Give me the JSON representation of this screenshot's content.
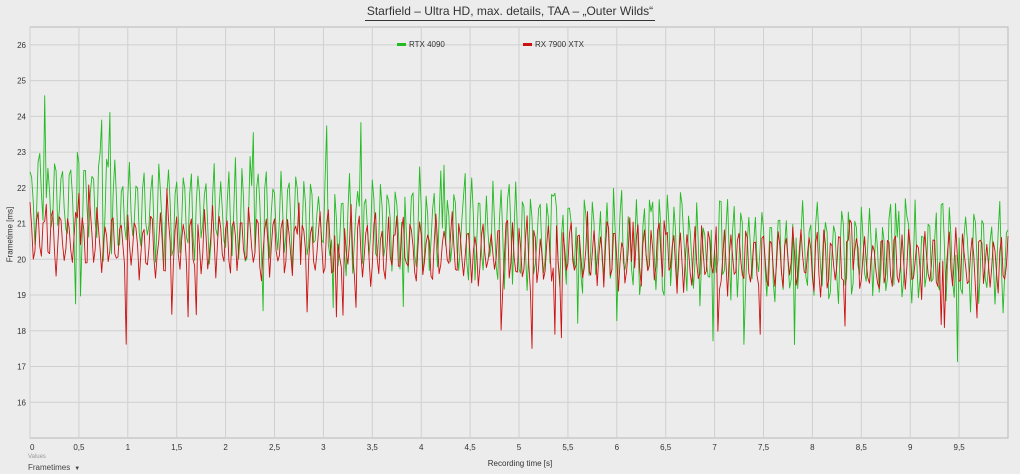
{
  "chart_data": {
    "type": "line",
    "title": "Starfield – Ultra HD, max. details, TAA – „Outer Wilds“",
    "xlabel": "Recording time [s]",
    "ylabel": "Frametime [ms]",
    "xlim": [
      0,
      10
    ],
    "ylim": [
      15,
      26.5
    ],
    "x_ticks": [
      "0",
      "0,5",
      "1",
      "1,5",
      "2",
      "2,5",
      "3",
      "3,5",
      "4",
      "4,5",
      "5",
      "5,5",
      "6",
      "6,5",
      "7",
      "7,5",
      "8",
      "8,5",
      "9",
      "9,5"
    ],
    "y_ticks": [
      "16",
      "17",
      "18",
      "19",
      "20",
      "21",
      "22",
      "23",
      "24",
      "25",
      "26"
    ],
    "grid": true,
    "legend_position": "top-center",
    "series": [
      {
        "name": "RTX 4090",
        "color": "#22bb22",
        "x": [
          0,
          0.25,
          0.5,
          0.75,
          1,
          1.25,
          1.5,
          1.75,
          2,
          2.25,
          2.5,
          2.75,
          3,
          3.25,
          3.5,
          3.75,
          4,
          4.25,
          4.5,
          4.75,
          5,
          5.25,
          5.5,
          5.75,
          6,
          6.25,
          6.5,
          6.75,
          7,
          7.25,
          7.5,
          7.75,
          8,
          8.25,
          8.5,
          8.75,
          9,
          9.25,
          9.5,
          9.75,
          10
        ],
        "mean": [
          21.8,
          21.8,
          21.6,
          21.5,
          21.4,
          21.3,
          21.3,
          21.3,
          21.3,
          21.2,
          21.2,
          21.1,
          21.1,
          21.0,
          21.0,
          21.0,
          20.9,
          20.8,
          20.7,
          20.7,
          20.6,
          20.6,
          20.5,
          20.5,
          20.5,
          20.4,
          20.4,
          20.3,
          20.3,
          20.3,
          20.2,
          20.2,
          20.2,
          20.2,
          20.2,
          20.2,
          20.1,
          20.1,
          20.1,
          20.1,
          20.1
        ],
        "min": [
          18.3,
          18.4,
          18.8,
          18.0,
          18.2,
          18.6,
          18.4,
          18.5,
          18.3,
          18.4,
          18.3,
          18.4,
          18.4,
          18.5,
          18.6,
          18.4,
          18.4,
          18.1,
          18.2,
          18.1,
          17.6,
          18.1,
          18.0,
          18.1,
          18.2,
          17.9,
          18.0,
          17.5,
          17.6,
          17.7,
          17.0,
          17.4,
          17.1,
          17.4,
          17.3,
          17.0,
          17.0,
          17.3,
          17.0,
          16.8,
          17.5
        ],
        "max": [
          24.8,
          24.6,
          23.8,
          24.2,
          24.5,
          23.5,
          23.4,
          23.7,
          24.5,
          23.8,
          23.9,
          24.0,
          23.9,
          24.2,
          24.0,
          23.0,
          23.3,
          22.8,
          22.4,
          22.5,
          22.4,
          21.8,
          21.9,
          21.6,
          22.2,
          21.8,
          22.0,
          21.8,
          22.5,
          21.9,
          22.0,
          22.2,
          21.6,
          21.6,
          21.5,
          21.7,
          21.7,
          21.5,
          21.7,
          21.4,
          22.1
        ],
        "amplitude": 1.4
      },
      {
        "name": "RX 7900 XTX",
        "color": "#cc1111",
        "x": [
          0,
          0.25,
          0.5,
          0.75,
          1,
          1.25,
          1.5,
          1.75,
          2,
          2.25,
          2.5,
          2.75,
          3,
          3.25,
          3.5,
          3.75,
          4,
          4.25,
          4.5,
          4.75,
          5,
          5.25,
          5.5,
          5.75,
          6,
          6.25,
          6.5,
          6.75,
          7,
          7.25,
          7.5,
          7.75,
          8,
          8.25,
          8.5,
          8.75,
          9,
          9.25,
          9.5,
          9.75,
          10
        ],
        "mean": [
          20.6,
          20.6,
          20.6,
          20.5,
          20.4,
          20.4,
          20.4,
          20.5,
          20.5,
          20.5,
          20.4,
          20.4,
          20.4,
          20.4,
          20.3,
          20.3,
          20.3,
          20.3,
          20.2,
          20.2,
          20.1,
          20.1,
          20.1,
          20.1,
          20.1,
          20.1,
          20.1,
          20.0,
          20.0,
          20.0,
          20.0,
          20.0,
          20.0,
          19.9,
          19.9,
          19.9,
          19.9,
          19.9,
          19.9,
          19.9,
          19.9
        ],
        "min": [
          18.1,
          18.5,
          18.3,
          18.0,
          17.4,
          18.2,
          18.2,
          18.4,
          18.3,
          18.6,
          18.3,
          18.4,
          18.3,
          18.4,
          18.4,
          18.5,
          18.4,
          18.4,
          18.6,
          18.5,
          16.6,
          18.0,
          17.6,
          18.2,
          18.3,
          18.3,
          18.2,
          17.6,
          17.9,
          18.3,
          17.6,
          18.2,
          17.3,
          18.0,
          18.2,
          18.3,
          17.9,
          18.0,
          17.7,
          18.2,
          18.4
        ],
        "max": [
          21.6,
          21.8,
          21.9,
          22.5,
          22.7,
          22.2,
          22.0,
          22.1,
          22.3,
          22.2,
          21.8,
          21.7,
          21.7,
          21.6,
          21.5,
          21.5,
          21.3,
          21.4,
          21.3,
          21.2,
          21.4,
          21.0,
          21.2,
          21.6,
          21.4,
          21.2,
          21.2,
          21.2,
          20.9,
          21.1,
          21.0,
          20.9,
          21.0,
          21.0,
          21.2,
          20.8,
          20.9,
          20.8,
          20.9,
          20.7,
          21.0
        ],
        "amplitude": 0.9
      }
    ]
  },
  "footer": {
    "values_label": "Values",
    "selector_label": "Frametimes",
    "selector_arrow": "▼"
  }
}
